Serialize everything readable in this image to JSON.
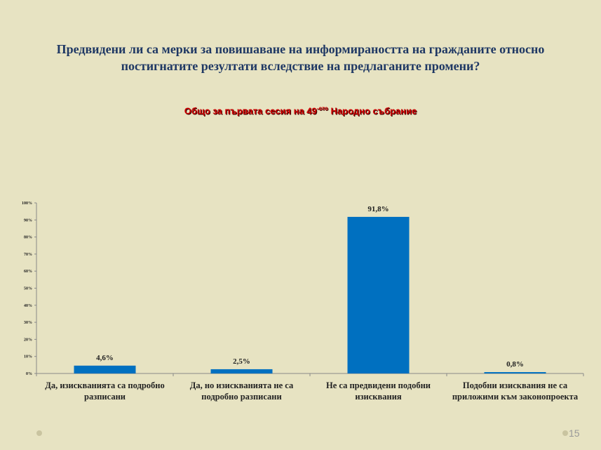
{
  "chart_data": {
    "type": "bar",
    "title_lines": [
      "Предвидени ли са мерки за повишаване на информираността на гражданите относно",
      "постигнатите резултати вследствие на предлаганите промени?"
    ],
    "subtitle_parts": [
      "Общо за първата сесия на 49",
      "-ото",
      " Народно събрание"
    ],
    "categories": [
      "Да, изискванията са подробно разписани",
      "Да, но изискванията не са подробно разписани",
      "Не са предвидени подобни изисквания",
      "Подобни изисквания не са приложими към законопроекта"
    ],
    "values": [
      4.6,
      2.5,
      91.8,
      0.8
    ],
    "value_labels": [
      "4,6%",
      "2,5%",
      "91,8%",
      "0,8%"
    ],
    "color": "#0070c0",
    "ylim": [
      0,
      100
    ],
    "yticks": [
      {
        "value": 0,
        "label": "0%"
      },
      {
        "value": 10,
        "label": "10%"
      },
      {
        "value": 20,
        "label": "20%"
      },
      {
        "value": 30,
        "label": "30%"
      },
      {
        "value": 40,
        "label": "40%"
      },
      {
        "value": 50,
        "label": "50%"
      },
      {
        "value": 60,
        "label": "60%"
      },
      {
        "value": 70,
        "label": "70%"
      },
      {
        "value": 80,
        "label": "80%"
      },
      {
        "value": 90,
        "label": "90%"
      },
      {
        "value": 100,
        "label": "100%"
      }
    ],
    "grid": false
  },
  "page_number": "15"
}
